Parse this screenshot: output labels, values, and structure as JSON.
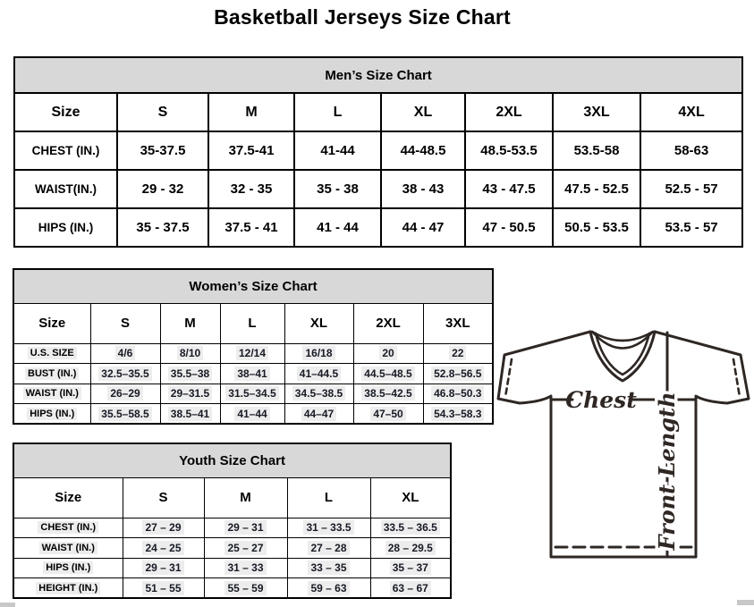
{
  "page_title": "Basketball Jerseys Size Chart",
  "tables": {
    "men": {
      "title": "Men’s Size Chart",
      "columns": [
        "Size",
        "S",
        "M",
        "L",
        "XL",
        "2XL",
        "3XL",
        "4XL"
      ],
      "rows": [
        {
          "label": "CHEST (IN.)",
          "values": [
            "35-37.5",
            "37.5-41",
            "41-44",
            "44-48.5",
            "48.5-53.5",
            "53.5-58",
            "58-63"
          ]
        },
        {
          "label": "WAIST(IN.)",
          "values": [
            "29 - 32",
            "32 - 35",
            "35 - 38",
            "38 - 43",
            "43 - 47.5",
            "47.5 - 52.5",
            "52.5 - 57"
          ]
        },
        {
          "label": "HIPS (IN.)",
          "values": [
            "35 - 37.5",
            "37.5 - 41",
            "41 - 44",
            "44 - 47",
            "47 - 50.5",
            "50.5 - 53.5",
            "53.5 - 57"
          ]
        }
      ]
    },
    "women": {
      "title": "Women’s Size Chart",
      "columns": [
        "Size",
        "S",
        "M",
        "L",
        "XL",
        "2XL",
        "3XL"
      ],
      "rows": [
        {
          "label": "U.S. SIZE",
          "values": [
            "4/6",
            "8/10",
            "12/14",
            "16/18",
            "20",
            "22"
          ]
        },
        {
          "label": "BUST (IN.)",
          "values": [
            "32.5–35.5",
            "35.5–38",
            "38–41",
            "41–44.5",
            "44.5–48.5",
            "52.8–56.5"
          ]
        },
        {
          "label": "WAIST (IN.)",
          "values": [
            "26–29",
            "29–31.5",
            "31.5–34.5",
            "34.5–38.5",
            "38.5–42.5",
            "46.8–50.3"
          ]
        },
        {
          "label": "HIPS (IN.)",
          "values": [
            "35.5–58.5",
            "38.5–41",
            "41–44",
            "44–47",
            "47–50",
            "54.3–58.3"
          ]
        }
      ]
    },
    "youth": {
      "title": "Youth Size Chart",
      "columns": [
        "Size",
        "S",
        "M",
        "L",
        "XL"
      ],
      "rows": [
        {
          "label": "CHEST (IN.)",
          "values": [
            "27 – 29",
            "29 – 31",
            "31 – 33.5",
            "33.5 – 36.5"
          ]
        },
        {
          "label": "WAIST (IN.)",
          "values": [
            "24 – 25",
            "25 – 27",
            "27 – 28",
            "28 – 29.5"
          ]
        },
        {
          "label": "HIPS (IN.)",
          "values": [
            "29 – 31",
            "31 – 33",
            "33 – 35",
            "35 – 37"
          ]
        },
        {
          "label": "HEIGHT (IN.)",
          "values": [
            "51 – 55",
            "55 – 59",
            "59 – 63",
            "63 – 67"
          ]
        }
      ]
    }
  },
  "diagram": {
    "chest_label": "Chest",
    "front_length_label": "Front Length"
  },
  "colors": {
    "table_title_bg": "#d8d8d8",
    "table_border": "#000000",
    "value_text": "#171a24",
    "diagram_ink": "#2e2723"
  }
}
